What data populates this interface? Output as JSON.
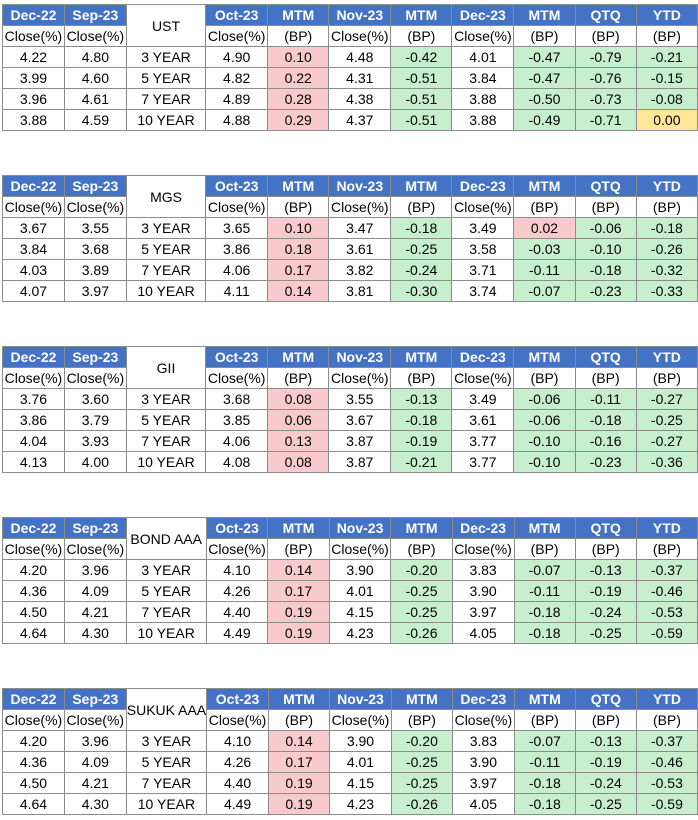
{
  "header_labels": [
    "Dec-22",
    "Sep-23",
    "Oct-23",
    "MTM",
    "Nov-23",
    "MTM",
    "Dec-23",
    "MTM",
    "QTQ",
    "YTD"
  ],
  "sub_labels": [
    "Close(%)",
    "Close(%)",
    "Close(%)",
    "(BP)",
    "Close(%)",
    "(BP)",
    "Close(%)",
    "(BP)",
    "(BP)",
    "(BP)"
  ],
  "colors": {
    "header_blue": "#4472c4",
    "positive_red": "#f8c9cd",
    "negative_green": "#c7efce",
    "zero_yellow": "#ffe699"
  },
  "tables": [
    {
      "name": "UST",
      "rows": [
        {
          "dec22": "4.22",
          "sep23": "4.80",
          "tenor": "3 YEAR",
          "oct23": "4.90",
          "mtm1": "0.10",
          "nov23": "4.48",
          "mtm2": "-0.42",
          "dec23": "4.01",
          "mtm3": "-0.47",
          "qtq": "-0.79",
          "ytd": "-0.21"
        },
        {
          "dec22": "3.99",
          "sep23": "4.60",
          "tenor": "5 YEAR",
          "oct23": "4.82",
          "mtm1": "0.22",
          "nov23": "4.31",
          "mtm2": "-0.51",
          "dec23": "3.84",
          "mtm3": "-0.47",
          "qtq": "-0.76",
          "ytd": "-0.15"
        },
        {
          "dec22": "3.96",
          "sep23": "4.61",
          "tenor": "7 YEAR",
          "oct23": "4.89",
          "mtm1": "0.28",
          "nov23": "4.38",
          "mtm2": "-0.51",
          "dec23": "3.88",
          "mtm3": "-0.50",
          "qtq": "-0.73",
          "ytd": "-0.08"
        },
        {
          "dec22": "3.88",
          "sep23": "4.59",
          "tenor": "10 YEAR",
          "oct23": "4.88",
          "mtm1": "0.29",
          "nov23": "4.37",
          "mtm2": "-0.51",
          "dec23": "3.88",
          "mtm3": "-0.49",
          "qtq": "-0.71",
          "ytd": "0.00"
        }
      ]
    },
    {
      "name": "MGS",
      "rows": [
        {
          "dec22": "3.67",
          "sep23": "3.55",
          "tenor": "3 YEAR",
          "oct23": "3.65",
          "mtm1": "0.10",
          "nov23": "3.47",
          "mtm2": "-0.18",
          "dec23": "3.49",
          "mtm3": "0.02",
          "qtq": "-0.06",
          "ytd": "-0.18"
        },
        {
          "dec22": "3.84",
          "sep23": "3.68",
          "tenor": "5 YEAR",
          "oct23": "3.86",
          "mtm1": "0.18",
          "nov23": "3.61",
          "mtm2": "-0.25",
          "dec23": "3.58",
          "mtm3": "-0.03",
          "qtq": "-0.10",
          "ytd": "-0.26"
        },
        {
          "dec22": "4.03",
          "sep23": "3.89",
          "tenor": "7 YEAR",
          "oct23": "4.06",
          "mtm1": "0.17",
          "nov23": "3.82",
          "mtm2": "-0.24",
          "dec23": "3.71",
          "mtm3": "-0.11",
          "qtq": "-0.18",
          "ytd": "-0.32"
        },
        {
          "dec22": "4.07",
          "sep23": "3.97",
          "tenor": "10 YEAR",
          "oct23": "4.11",
          "mtm1": "0.14",
          "nov23": "3.81",
          "mtm2": "-0.30",
          "dec23": "3.74",
          "mtm3": "-0.07",
          "qtq": "-0.23",
          "ytd": "-0.33"
        }
      ]
    },
    {
      "name": "GII",
      "rows": [
        {
          "dec22": "3.76",
          "sep23": "3.60",
          "tenor": "3 YEAR",
          "oct23": "3.68",
          "mtm1": "0.08",
          "nov23": "3.55",
          "mtm2": "-0.13",
          "dec23": "3.49",
          "mtm3": "-0.06",
          "qtq": "-0.11",
          "ytd": "-0.27"
        },
        {
          "dec22": "3.86",
          "sep23": "3.79",
          "tenor": "5 YEAR",
          "oct23": "3.85",
          "mtm1": "0.06",
          "nov23": "3.67",
          "mtm2": "-0.18",
          "dec23": "3.61",
          "mtm3": "-0.06",
          "qtq": "-0.18",
          "ytd": "-0.25"
        },
        {
          "dec22": "4.04",
          "sep23": "3.93",
          "tenor": "7 YEAR",
          "oct23": "4.06",
          "mtm1": "0.13",
          "nov23": "3.87",
          "mtm2": "-0.19",
          "dec23": "3.77",
          "mtm3": "-0.10",
          "qtq": "-0.16",
          "ytd": "-0.27"
        },
        {
          "dec22": "4.13",
          "sep23": "4.00",
          "tenor": "10 YEAR",
          "oct23": "4.08",
          "mtm1": "0.08",
          "nov23": "3.87",
          "mtm2": "-0.21",
          "dec23": "3.77",
          "mtm3": "-0.10",
          "qtq": "-0.23",
          "ytd": "-0.36"
        }
      ]
    },
    {
      "name": "BOND AAA",
      "rows": [
        {
          "dec22": "4.20",
          "sep23": "3.96",
          "tenor": "3 YEAR",
          "oct23": "4.10",
          "mtm1": "0.14",
          "nov23": "3.90",
          "mtm2": "-0.20",
          "dec23": "3.83",
          "mtm3": "-0.07",
          "qtq": "-0.13",
          "ytd": "-0.37"
        },
        {
          "dec22": "4.36",
          "sep23": "4.09",
          "tenor": "5 YEAR",
          "oct23": "4.26",
          "mtm1": "0.17",
          "nov23": "4.01",
          "mtm2": "-0.25",
          "dec23": "3.90",
          "mtm3": "-0.11",
          "qtq": "-0.19",
          "ytd": "-0.46"
        },
        {
          "dec22": "4.50",
          "sep23": "4.21",
          "tenor": "7 YEAR",
          "oct23": "4.40",
          "mtm1": "0.19",
          "nov23": "4.15",
          "mtm2": "-0.25",
          "dec23": "3.97",
          "mtm3": "-0.18",
          "qtq": "-0.24",
          "ytd": "-0.53"
        },
        {
          "dec22": "4.64",
          "sep23": "4.30",
          "tenor": "10 YEAR",
          "oct23": "4.49",
          "mtm1": "0.19",
          "nov23": "4.23",
          "mtm2": "-0.26",
          "dec23": "4.05",
          "mtm3": "-0.18",
          "qtq": "-0.25",
          "ytd": "-0.59"
        }
      ]
    },
    {
      "name": "SUKUK AAA",
      "rows": [
        {
          "dec22": "4.20",
          "sep23": "3.96",
          "tenor": "3 YEAR",
          "oct23": "4.10",
          "mtm1": "0.14",
          "nov23": "3.90",
          "mtm2": "-0.20",
          "dec23": "3.83",
          "mtm3": "-0.07",
          "qtq": "-0.13",
          "ytd": "-0.37"
        },
        {
          "dec22": "4.36",
          "sep23": "4.09",
          "tenor": "5 YEAR",
          "oct23": "4.26",
          "mtm1": "0.17",
          "nov23": "4.01",
          "mtm2": "-0.25",
          "dec23": "3.90",
          "mtm3": "-0.11",
          "qtq": "-0.19",
          "ytd": "-0.46"
        },
        {
          "dec22": "4.50",
          "sep23": "4.21",
          "tenor": "7 YEAR",
          "oct23": "4.40",
          "mtm1": "0.19",
          "nov23": "4.15",
          "mtm2": "-0.25",
          "dec23": "3.97",
          "mtm3": "-0.18",
          "qtq": "-0.24",
          "ytd": "-0.53"
        },
        {
          "dec22": "4.64",
          "sep23": "4.30",
          "tenor": "10 YEAR",
          "oct23": "4.49",
          "mtm1": "0.19",
          "nov23": "4.23",
          "mtm2": "-0.26",
          "dec23": "4.05",
          "mtm3": "-0.18",
          "qtq": "-0.25",
          "ytd": "-0.59"
        }
      ]
    }
  ]
}
